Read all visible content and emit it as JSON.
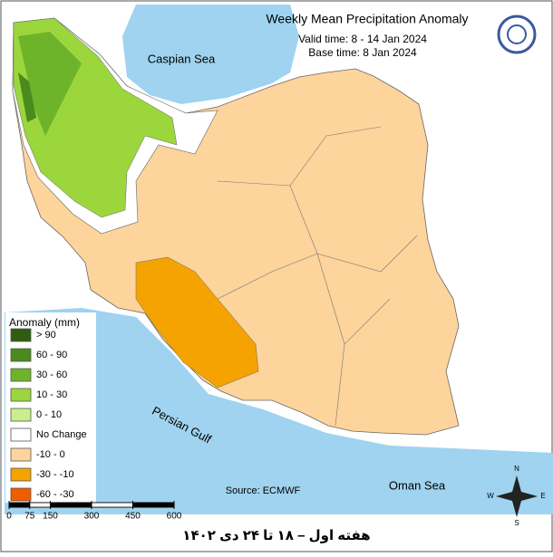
{
  "title": "Weekly Mean Precipitation Anomaly",
  "valid_time": "Valid time: 8 - 14 Jan 2024",
  "base_time": "Base time: 8 Jan 2024",
  "places": {
    "caspian": "Caspian Sea",
    "persian_gulf": "Persian Gulf",
    "oman_sea": "Oman Sea"
  },
  "legend": {
    "title": "Anomaly (mm)",
    "items": [
      {
        "label": "> 90",
        "color": "#2f5d12"
      },
      {
        "label": "60 - 90",
        "color": "#4b8a1d"
      },
      {
        "label": "30 - 60",
        "color": "#6db42b"
      },
      {
        "label": "10 - 30",
        "color": "#9bd63d"
      },
      {
        "label": "0 - 10",
        "color": "#c8ef8c"
      },
      {
        "label": "No Change",
        "color": "#ffffff"
      },
      {
        "label": "-10 - 0",
        "color": "#fdd49c"
      },
      {
        "label": "-30 - -10",
        "color": "#f5a300"
      },
      {
        "label": "-60 - -30",
        "color": "#f25c00"
      }
    ]
  },
  "source": "Source: ECMWF",
  "scale_ticks": [
    0,
    75,
    150,
    300,
    450,
    600
  ],
  "compass": {
    "n": "N",
    "e": "E",
    "s": "S",
    "w": "W"
  },
  "footer": "هفته اول – ۱۸ تا ۲۴ دی ۱۴۰۲"
}
